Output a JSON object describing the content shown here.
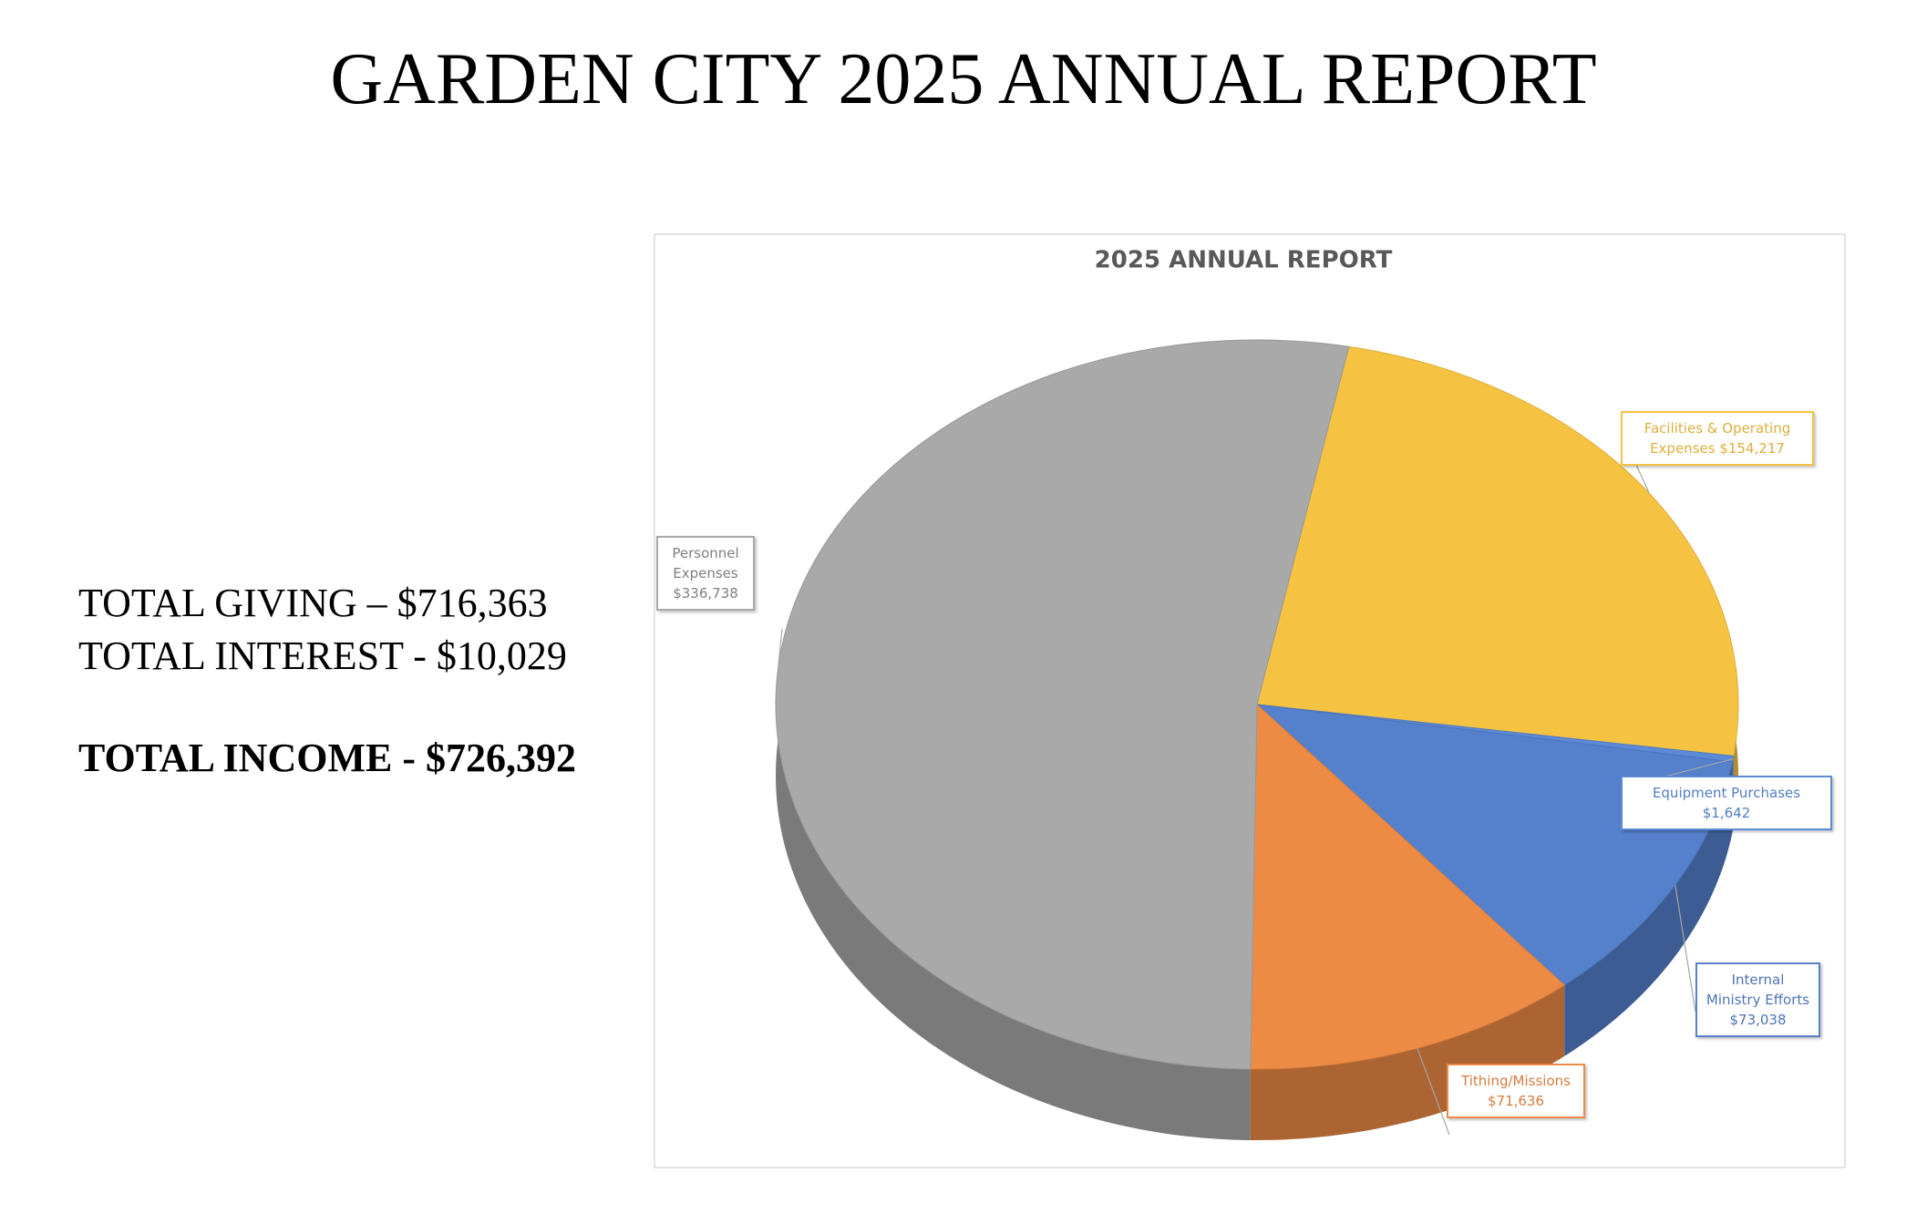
{
  "header": {
    "title": "GARDEN CITY 2025 ANNUAL REPORT"
  },
  "summary": {
    "giving": "TOTAL GIVING – $716,363",
    "interest": "TOTAL INTEREST - $10,029",
    "income": "TOTAL INCOME - $726,392"
  },
  "chart_data": {
    "type": "pie",
    "title": "2025 ANNUAL REPORT",
    "categories": [
      "Facilities & Operating Expenses",
      "Equipment Purchases",
      "Internal Ministry Efforts",
      "Tithing/Missions",
      "Personnel Expenses"
    ],
    "values": [
      154217,
      1642,
      73038,
      71636,
      336738
    ],
    "value_labels": [
      "$154,217",
      "$1,642",
      "$73,038",
      "$71,636",
      "$336,738"
    ],
    "colors": [
      "#f5c242",
      "#5b8ad6",
      "#5580cc",
      "#ed8b45",
      "#a9a9a9"
    ]
  }
}
